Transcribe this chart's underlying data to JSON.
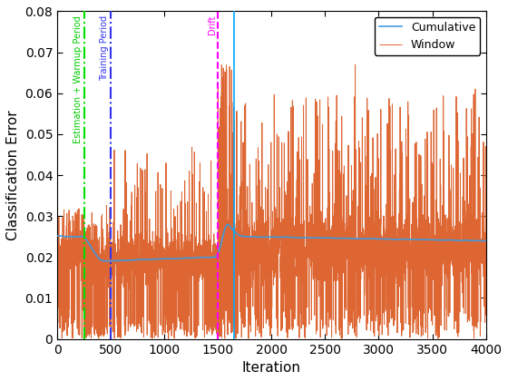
{
  "title": "",
  "xlabel": "Iteration",
  "ylabel": "Classification Error",
  "xlim": [
    0,
    4000
  ],
  "ylim": [
    0,
    0.08
  ],
  "xticks": [
    0,
    500,
    1000,
    1500,
    2000,
    2500,
    3000,
    3500,
    4000
  ],
  "yticks": [
    0,
    0.01,
    0.02,
    0.03,
    0.04,
    0.05,
    0.06,
    0.07,
    0.08
  ],
  "vlines": [
    {
      "x": 250,
      "color": "#00dd00",
      "linestyle": "-.",
      "linewidth": 1.5,
      "label": "Estimation + Warmup Period",
      "label_color": "#00cc00"
    },
    {
      "x": 500,
      "color": "#3333ee",
      "linestyle": "-.",
      "linewidth": 1.5,
      "label": "Training Period",
      "label_color": "#3333ee"
    },
    {
      "x": 1500,
      "color": "#ff00ff",
      "linestyle": "--",
      "linewidth": 1.5,
      "label": "Drift",
      "label_color": "#ff00ff"
    },
    {
      "x": 1650,
      "color": "#00aaff",
      "linestyle": "-",
      "linewidth": 1.2,
      "label": "",
      "label_color": "#00aaff"
    }
  ],
  "cumulative_color": "#4499dd",
  "window_color": "#dd6633",
  "window_linewidth": 0.7,
  "cumulative_linewidth": 1.2,
  "legend_loc": "upper right",
  "figsize": [
    5.6,
    4.2
  ],
  "dpi": 100
}
